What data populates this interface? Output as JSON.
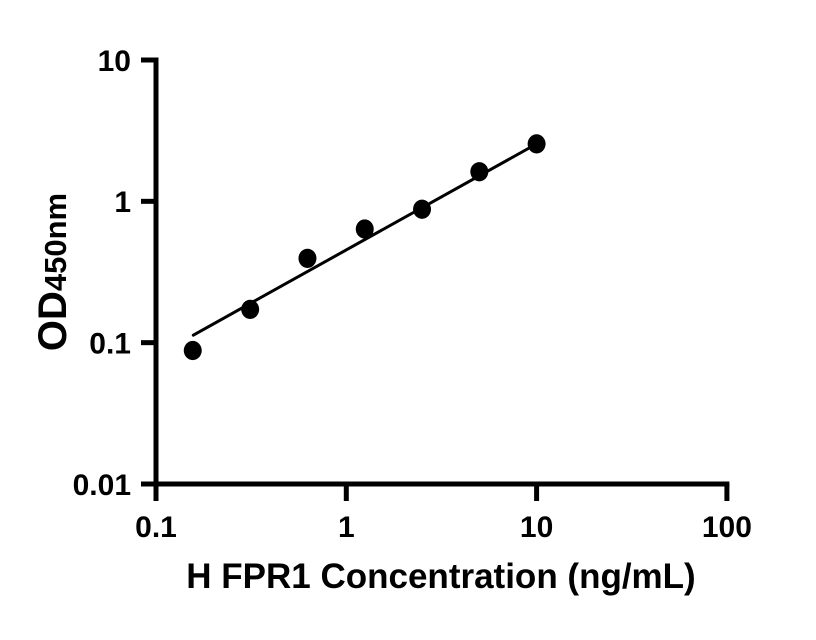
{
  "figure": {
    "background_color": "#ffffff",
    "ink_color": "#000000",
    "marker_color": "#000000",
    "fit_line_color": "#000000"
  },
  "chart_data": {
    "type": "scatter",
    "title": "",
    "xlabel": "H FPR1 Concentration (ng/mL)",
    "ylabel": "OD450nm",
    "ylabel_main": "OD",
    "ylabel_sub": "450nm",
    "x_scale": "log",
    "y_scale": "log",
    "xlim": [
      0.1,
      100
    ],
    "ylim": [
      0.01,
      10
    ],
    "x_ticks": [
      0.1,
      1,
      10,
      100
    ],
    "x_tick_labels": [
      "0.1",
      "1",
      "10",
      "100"
    ],
    "y_ticks": [
      10,
      1,
      0.1,
      0.01
    ],
    "y_tick_labels": [
      "10",
      "1",
      "0.1",
      "0.01"
    ],
    "grid": false,
    "legend": "none",
    "series": [
      {
        "name": "standard-points",
        "type": "scatter",
        "marker": "filled-circle",
        "color": "#000000",
        "points": [
          {
            "x": 0.156,
            "y": 0.088
          },
          {
            "x": 0.3125,
            "y": 0.172
          },
          {
            "x": 0.625,
            "y": 0.395
          },
          {
            "x": 1.25,
            "y": 0.637
          },
          {
            "x": 2.5,
            "y": 0.879
          },
          {
            "x": 5,
            "y": 1.62
          },
          {
            "x": 10,
            "y": 2.55
          }
        ]
      },
      {
        "name": "fit-line",
        "type": "line",
        "color": "#000000",
        "points": [
          {
            "x": 0.157,
            "y": 0.113
          },
          {
            "x": 10,
            "y": 2.55
          }
        ]
      }
    ]
  }
}
